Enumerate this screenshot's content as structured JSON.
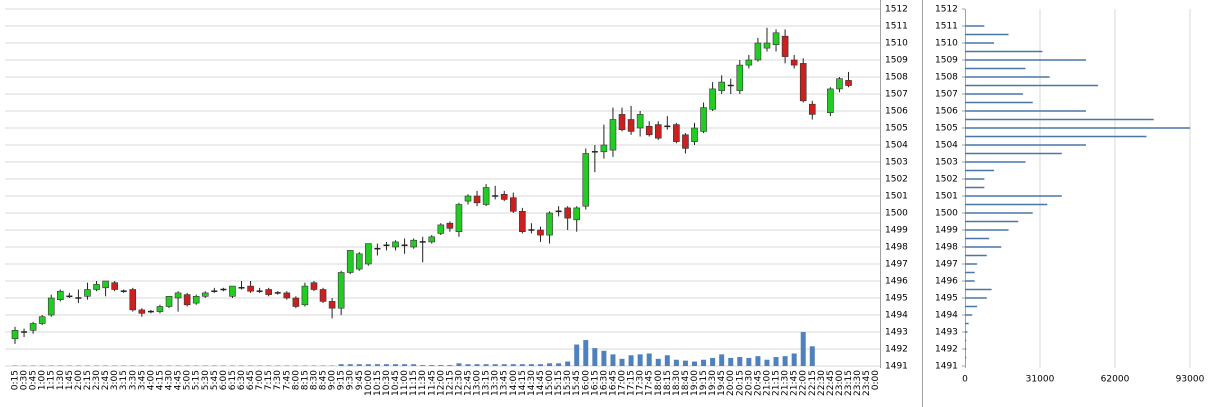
{
  "chart_data": [
    {
      "type": "candlestick",
      "categories": [
        "0:15",
        "0:30",
        "0:45",
        "1:00",
        "1:15",
        "1:30",
        "1:45",
        "2:00",
        "2:15",
        "2:30",
        "2:45",
        "3:00",
        "3:15",
        "3:30",
        "3:45",
        "4:00",
        "4:15",
        "4:30",
        "4:45",
        "5:00",
        "5:15",
        "5:30",
        "5:45",
        "6:00",
        "6:15",
        "6:30",
        "6:45",
        "7:00",
        "7:15",
        "7:30",
        "7:45",
        "8:00",
        "8:15",
        "8:30",
        "8:45",
        "9:00",
        "9:15",
        "9:30",
        "9:45",
        "10:00",
        "10:15",
        "10:30",
        "10:45",
        "11:00",
        "11:15",
        "11:30",
        "11:45",
        "12:00",
        "12:15",
        "12:30",
        "12:45",
        "13:00",
        "13:15",
        "13:30",
        "13:45",
        "14:00",
        "14:15",
        "14:30",
        "14:45",
        "15:00",
        "15:15",
        "15:30",
        "15:45",
        "16:00",
        "16:15",
        "16:30",
        "16:45",
        "17:00",
        "17:15",
        "17:30",
        "17:45",
        "18:00",
        "18:15",
        "18:30",
        "18:45",
        "19:00",
        "19:15",
        "19:30",
        "19:45",
        "20:00",
        "20:15",
        "20:30",
        "20:45",
        "21:00",
        "21:15",
        "21:30",
        "21:45",
        "22:00",
        "22:15",
        "22:30",
        "22:45",
        "23:00",
        "23:15",
        "23:30",
        "23:45",
        "0:00"
      ],
      "open": [
        1492.6,
        1493.0,
        1493.1,
        1493.5,
        1494.0,
        1494.9,
        1495.1,
        1495.0,
        1495.1,
        1495.5,
        1495.6,
        1495.9,
        1495.4,
        1495.5,
        1494.3,
        1494.2,
        1494.2,
        1494.5,
        1495.0,
        1495.2,
        1494.7,
        1495.1,
        1495.4,
        1495.5,
        1495.1,
        1495.6,
        1495.7,
        1495.4,
        1495.5,
        1495.3,
        1495.3,
        1495.0,
        1494.6,
        1495.9,
        1495.5,
        1494.8,
        1494.4,
        1496.5,
        1496.7,
        1497.0,
        1497.9,
        1498.1,
        1498.0,
        1498.1,
        1498.0,
        1498.3,
        1498.3,
        1498.8,
        1499.4,
        1498.9,
        1500.7,
        1501.0,
        1500.5,
        1501.0,
        1501.1,
        1500.9,
        1500.1,
        1499.0,
        1499.0,
        1498.7,
        1500.1,
        1500.3,
        1499.6,
        1500.4,
        1503.6,
        1503.6,
        1503.7,
        1505.8,
        1505.5,
        1505.0,
        1505.1,
        1505.2,
        1505.1,
        1505.2,
        1504.6,
        1504.2,
        1504.8,
        1506.1,
        1507.2,
        1507.5,
        1507.2,
        1508.7,
        1509.0,
        1509.7,
        1509.9,
        1510.4,
        1509.0,
        1508.8,
        1506.4,
        null,
        1505.9,
        1507.3,
        1507.8,
        null,
        null,
        null
      ],
      "high": [
        1493.3,
        1493.2,
        1493.6,
        1494.0,
        1495.2,
        1495.5,
        1495.3,
        1495.5,
        1495.9,
        1496.0,
        1496.0,
        1496.0,
        1495.5,
        1495.6,
        1494.4,
        1494.3,
        1494.6,
        1495.1,
        1495.4,
        1495.3,
        1495.2,
        1495.4,
        1495.6,
        1495.6,
        1495.7,
        1496.0,
        1496.0,
        1495.6,
        1495.6,
        1495.4,
        1495.4,
        1495.1,
        1495.9,
        1496.0,
        1495.6,
        1495.0,
        1496.6,
        1497.8,
        1497.7,
        1498.2,
        1498.2,
        1498.3,
        1498.4,
        1498.5,
        1498.5,
        1498.6,
        1498.7,
        1499.4,
        1499.5,
        1500.6,
        1501.1,
        1501.3,
        1501.7,
        1501.6,
        1501.3,
        1501.2,
        1500.3,
        1499.4,
        1499.2,
        1500.1,
        1500.4,
        1500.4,
        1500.4,
        1503.8,
        1504.0,
        1505.2,
        1506.2,
        1506.2,
        1506.3,
        1506.0,
        1505.4,
        1505.4,
        1505.7,
        1505.3,
        1504.7,
        1505.3,
        1506.5,
        1507.7,
        1508.1,
        1507.9,
        1509.0,
        1509.3,
        1510.3,
        1510.9,
        1510.8,
        1510.8,
        1509.3,
        1509.1,
        1506.6,
        null,
        1507.4,
        1508.0,
        1508.3,
        null,
        null,
        null
      ],
      "low": [
        1492.3,
        1492.7,
        1492.9,
        1493.4,
        1493.9,
        1494.8,
        1495.0,
        1494.7,
        1494.9,
        1495.4,
        1495.1,
        1495.4,
        1495.3,
        1494.2,
        1493.9,
        1494.1,
        1494.1,
        1494.4,
        1494.2,
        1494.5,
        1494.6,
        1495.0,
        1495.3,
        1495.4,
        1495.0,
        1495.5,
        1495.3,
        1495.3,
        1495.1,
        1495.2,
        1494.9,
        1494.4,
        1494.5,
        1495.4,
        1494.7,
        1493.8,
        1494.0,
        1496.4,
        1496.6,
        1496.9,
        1497.5,
        1497.8,
        1497.8,
        1497.6,
        1497.9,
        1497.1,
        1498.2,
        1498.7,
        1498.9,
        1498.6,
        1500.5,
        1500.4,
        1500.4,
        1500.8,
        1500.7,
        1500.0,
        1498.8,
        1498.8,
        1498.3,
        1498.2,
        1499.8,
        1499.0,
        1498.9,
        1500.2,
        1502.4,
        1503.2,
        1503.3,
        1504.8,
        1504.6,
        1504.5,
        1504.5,
        1504.3,
        1504.9,
        1504.1,
        1503.5,
        1504.0,
        1504.7,
        1506.0,
        1507.0,
        1507.0,
        1507.0,
        1508.5,
        1508.9,
        1509.5,
        1509.5,
        1508.8,
        1508.5,
        1506.5,
        1505.5,
        null,
        1505.7,
        1507.1,
        1507.4,
        null,
        null,
        null
      ],
      "close": [
        1493.1,
        1493.0,
        1493.5,
        1493.9,
        1495.0,
        1495.4,
        1495.1,
        1495.0,
        1495.5,
        1495.8,
        1496.0,
        1495.5,
        1495.4,
        1494.3,
        1494.1,
        1494.2,
        1494.5,
        1495.1,
        1495.3,
        1494.6,
        1495.1,
        1495.3,
        1495.4,
        1495.5,
        1495.7,
        1495.6,
        1495.4,
        1495.4,
        1495.2,
        1495.3,
        1495.0,
        1494.5,
        1495.7,
        1495.5,
        1494.8,
        1494.4,
        1496.5,
        1497.8,
        1497.6,
        1498.2,
        1497.9,
        1498.1,
        1498.3,
        1498.1,
        1498.4,
        1498.3,
        1498.6,
        1499.3,
        1499.1,
        1500.5,
        1501.0,
        1500.6,
        1501.5,
        1501.0,
        1500.8,
        1500.1,
        1498.9,
        1499.0,
        1498.7,
        1500.0,
        1500.1,
        1499.7,
        1500.3,
        1503.5,
        1503.6,
        1504.0,
        1505.5,
        1504.9,
        1504.8,
        1505.8,
        1504.6,
        1504.4,
        1505.1,
        1504.2,
        1503.8,
        1505.0,
        1506.2,
        1507.3,
        1507.7,
        1507.5,
        1508.7,
        1509.0,
        1510.0,
        1510.0,
        1510.6,
        1509.2,
        1508.7,
        1506.6,
        1505.8,
        null,
        1507.3,
        1507.9,
        1507.5,
        null,
        null,
        null
      ],
      "volume": [
        0.5,
        0.5,
        0.5,
        0.5,
        0.5,
        0.5,
        0.5,
        0.5,
        0.5,
        0.5,
        0.5,
        0.5,
        0.5,
        0.5,
        0.5,
        0.5,
        0.5,
        0.5,
        0.5,
        0.5,
        0.5,
        0.5,
        0.5,
        0.5,
        0.5,
        0.5,
        0.5,
        0.5,
        0.5,
        0.5,
        0.5,
        0.5,
        0.5,
        0.5,
        0.5,
        0.5,
        2,
        2,
        2,
        2,
        2,
        2,
        2,
        2,
        2,
        1,
        1,
        1,
        1,
        3,
        2,
        2,
        2,
        2,
        2,
        2,
        2,
        2,
        2,
        3,
        3,
        5,
        24,
        29,
        20,
        17,
        13,
        8,
        12,
        13,
        14,
        8,
        12,
        7,
        6,
        5,
        7,
        9,
        13,
        9,
        10,
        9,
        11,
        7,
        10,
        11,
        14,
        38,
        22,
        0,
        0,
        0,
        0,
        0,
        0,
        0
      ],
      "up_color": "#22cc22",
      "down_color": "#cc1f1f",
      "volume_color": "#4f81bd",
      "ylim": [
        1491,
        1512
      ],
      "yticks": [
        1491,
        1492,
        1493,
        1494,
        1495,
        1496,
        1497,
        1498,
        1499,
        1500,
        1501,
        1502,
        1503,
        1504,
        1505,
        1506,
        1507,
        1508,
        1509,
        1510,
        1511,
        1512
      ],
      "grid": true
    },
    {
      "type": "profile",
      "levels": [
        1511.0,
        1510.5,
        1510.0,
        1509.5,
        1509.0,
        1508.5,
        1508.0,
        1507.5,
        1507.0,
        1506.5,
        1506.0,
        1505.5,
        1505.0,
        1504.5,
        1504.0,
        1503.5,
        1503.0,
        1502.5,
        1502.0,
        1501.5,
        1501.0,
        1500.5,
        1500.0,
        1499.5,
        1499.0,
        1498.5,
        1498.0,
        1497.5,
        1497.0,
        1496.5,
        1496.0,
        1495.5,
        1495.0,
        1494.5,
        1494.0,
        1493.5,
        1493.0,
        1492.5,
        1492.0,
        1491.5
      ],
      "values": [
        8000,
        18000,
        12000,
        32000,
        50000,
        25000,
        35000,
        55000,
        24000,
        28000,
        50000,
        78000,
        93000,
        75000,
        50000,
        40000,
        25000,
        12000,
        8000,
        8000,
        40000,
        34000,
        28000,
        22000,
        18000,
        10000,
        15000,
        9000,
        5000,
        4000,
        4000,
        11000,
        9000,
        5000,
        3000,
        1500,
        1000,
        500,
        500,
        500
      ],
      "color": "#4a76a8",
      "xlim": [
        0,
        93000
      ],
      "xticks": [
        0,
        31000,
        62000,
        93000
      ],
      "ylim": [
        1491,
        1512
      ],
      "yticks": [
        1491,
        1492,
        1493,
        1494,
        1495,
        1496,
        1497,
        1498,
        1499,
        1500,
        1501,
        1502,
        1503,
        1504,
        1505,
        1506,
        1507,
        1508,
        1509,
        1510,
        1511,
        1512
      ],
      "grid": true
    }
  ]
}
